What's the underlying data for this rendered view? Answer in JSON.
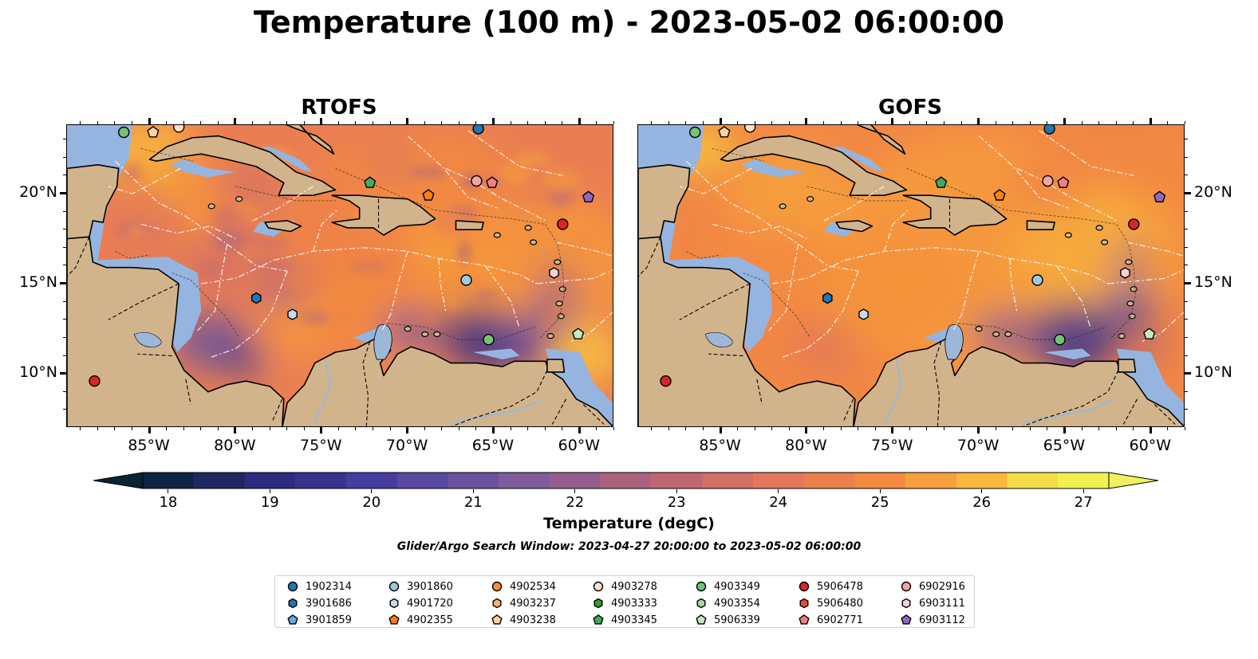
{
  "title": "Temperature (100 m) - 2023-05-02 06:00:00",
  "panels": [
    {
      "title": "RTOFS",
      "variant": "rtofs"
    },
    {
      "title": "GOFS",
      "variant": "gofs"
    }
  ],
  "map": {
    "lon_range": [
      -89.8,
      -58.0
    ],
    "lat_range": [
      7.0,
      23.8
    ],
    "lon_ticks": [
      "85°W",
      "80°W",
      "75°W",
      "70°W",
      "65°W",
      "60°W"
    ],
    "lon_tick_values": [
      -85,
      -80,
      -75,
      -70,
      -65,
      -60
    ],
    "lat_ticks": [
      "20°N",
      "15°N",
      "10°N"
    ],
    "lat_tick_values": [
      20,
      15,
      10
    ],
    "land_color": "#d2b48c",
    "shelf_color": "#96b4e0",
    "deep_pacific_color": "#0b2436"
  },
  "colorbar": {
    "label": "Temperature (degC)",
    "ticks": [
      "18",
      "19",
      "20",
      "21",
      "22",
      "23",
      "24",
      "25",
      "26",
      "27"
    ],
    "min": 18,
    "max": 27,
    "step": 0.5,
    "extend": "both"
  },
  "search_window": "Glider/Argo Search Window: 2023-04-27 20:00:00 to 2023-05-02 06:00:00",
  "legend": [
    {
      "id": "1902314",
      "marker": "circle",
      "color": "#1f77b4"
    },
    {
      "id": "3901686",
      "marker": "hexagon",
      "color": "#1f77b4"
    },
    {
      "id": "3901859",
      "marker": "pentagon",
      "color": "#6fa8dc"
    },
    {
      "id": "3901860",
      "marker": "circle",
      "color": "#9ecae1"
    },
    {
      "id": "4901720",
      "marker": "hexagon",
      "color": "#c6dbef"
    },
    {
      "id": "4902355",
      "marker": "pentagon",
      "color": "#ff7f0e"
    },
    {
      "id": "4902534",
      "marker": "circle",
      "color": "#fd8d3c"
    },
    {
      "id": "4903237",
      "marker": "hexagon",
      "color": "#fdae6b"
    },
    {
      "id": "4903238",
      "marker": "pentagon",
      "color": "#fdd0a2"
    },
    {
      "id": "4903278",
      "marker": "circle",
      "color": "#fde0c8"
    },
    {
      "id": "4903333",
      "marker": "hexagon",
      "color": "#2ca02c"
    },
    {
      "id": "4903345",
      "marker": "pentagon",
      "color": "#41ab5d"
    },
    {
      "id": "4903349",
      "marker": "circle",
      "color": "#74c476"
    },
    {
      "id": "4903354",
      "marker": "hexagon",
      "color": "#a1d99b"
    },
    {
      "id": "5906339",
      "marker": "pentagon",
      "color": "#c7e9c0"
    },
    {
      "id": "5906478",
      "marker": "circle",
      "color": "#d62728"
    },
    {
      "id": "5906480",
      "marker": "hexagon",
      "color": "#e34a33"
    },
    {
      "id": "6902771",
      "marker": "pentagon",
      "color": "#f08080"
    },
    {
      "id": "6902916",
      "marker": "circle",
      "color": "#f4a3a3"
    },
    {
      "id": "6903111",
      "marker": "hexagon",
      "color": "#f9d0cf"
    },
    {
      "id": "6903112",
      "marker": "pentagon",
      "color": "#9467bd"
    }
  ],
  "floats": [
    {
      "id": "4903349",
      "lon": -86.5,
      "lat": 23.4
    },
    {
      "id": "4903238",
      "lon": -84.8,
      "lat": 23.4
    },
    {
      "id": "4903278",
      "lon": -83.3,
      "lat": 23.7
    },
    {
      "id": "1902314",
      "lon": -65.9,
      "lat": 23.6
    },
    {
      "id": "4903345",
      "lon": -72.2,
      "lat": 20.6
    },
    {
      "id": "6902916",
      "lon": -66.0,
      "lat": 20.7
    },
    {
      "id": "6902771",
      "lon": -65.1,
      "lat": 20.6
    },
    {
      "id": "4902355",
      "lon": -68.8,
      "lat": 19.9
    },
    {
      "id": "6903112",
      "lon": -59.5,
      "lat": 19.8
    },
    {
      "id": "5906478",
      "lon": -61.0,
      "lat": 18.3
    },
    {
      "id": "3901860",
      "lon": -66.6,
      "lat": 15.2
    },
    {
      "id": "6903111",
      "lon": -61.5,
      "lat": 15.6
    },
    {
      "id": "3901686",
      "lon": -78.8,
      "lat": 14.2
    },
    {
      "id": "4901720",
      "lon": -76.7,
      "lat": 13.3
    },
    {
      "id": "4903349",
      "lon": -65.3,
      "lat": 11.9
    },
    {
      "id": "5906339",
      "lon": -60.1,
      "lat": 12.2
    },
    {
      "id": "5906478",
      "lon": -88.2,
      "lat": 9.6
    }
  ]
}
